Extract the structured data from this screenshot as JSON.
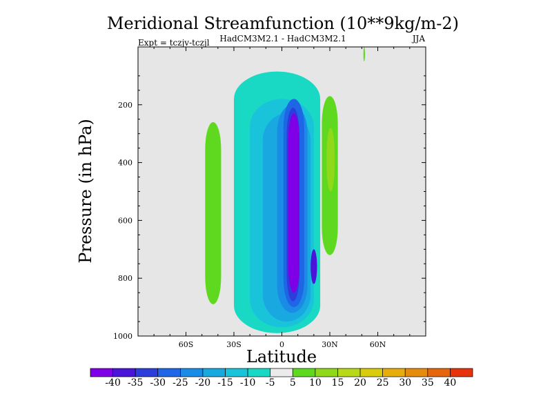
{
  "chart_data": {
    "type": "heatmap",
    "title": "Meridional Streamfunction (10**9kg/m-2)",
    "subtitle_left": "Expt = tczjv-tczjl",
    "subtitle_center": "HadCM3M2.1 - HadCM3M2.1",
    "subtitle_right": "JJA",
    "xlabel": "Latitude",
    "ylabel": "Pressure (in hPa)",
    "xlim": [
      -90,
      90
    ],
    "ylim": [
      0,
      1000
    ],
    "x_ticks": [
      -60,
      -30,
      0,
      30,
      60
    ],
    "x_tick_labels": [
      "60S",
      "30S",
      "0",
      "30N",
      "60N"
    ],
    "y_ticks": [
      200,
      400,
      600,
      800,
      1000
    ],
    "y_tick_labels": [
      "200",
      "400",
      "600",
      "800",
      "1000"
    ],
    "background_color": "#e6e6e6",
    "colorbar": {
      "labels": [
        "-40",
        "-35",
        "-30",
        "-25",
        "-20",
        "-15",
        "-10",
        "-5",
        "5",
        "10",
        "15",
        "20",
        "25",
        "30",
        "35",
        "40"
      ],
      "colors": [
        "#7f00e6",
        "#4a14d9",
        "#2d3ddb",
        "#1f66e6",
        "#1a8ce6",
        "#19a8e0",
        "#19c4db",
        "#19d9c4",
        "#ebebeb",
        "#5fd91f",
        "#8fd91a",
        "#b8d91a",
        "#d9cc0d",
        "#e6ad0d",
        "#e68c0d",
        "#e6660d",
        "#e6330d"
      ]
    },
    "regions": [
      {
        "name": "positive-cell-60s",
        "level": "5",
        "lat": [
          -48,
          -38
        ],
        "pressure": [
          260,
          890
        ]
      },
      {
        "name": "negative-outer-envelope",
        "level": "-5",
        "lat": [
          -30,
          24
        ],
        "pressure": [
          85,
          990
        ]
      },
      {
        "name": "negative-level-10",
        "level": "-10",
        "lat": [
          -20,
          20
        ],
        "pressure": [
          180,
          970
        ]
      },
      {
        "name": "negative-level-15",
        "level": "-15",
        "lat": [
          -12,
          18
        ],
        "pressure": [
          230,
          950
        ]
      },
      {
        "name": "negative-level-20",
        "level": "-20",
        "lat": [
          -3,
          16
        ],
        "pressure": [
          200,
          920
        ]
      },
      {
        "name": "negative-level-25",
        "level": "-25",
        "lat": [
          1,
          14
        ],
        "pressure": [
          180,
          900
        ]
      },
      {
        "name": "negative-level-30",
        "level": "-30",
        "lat": [
          3,
          11
        ],
        "pressure": [
          210,
          880
        ]
      },
      {
        "name": "negative-core",
        "level": "-40",
        "lat": [
          4,
          11
        ],
        "pressure": [
          230,
          850
        ]
      },
      {
        "name": "negative-secondary-core",
        "level": "-35",
        "lat": [
          18,
          22
        ],
        "pressure": [
          700,
          820
        ]
      },
      {
        "name": "positive-cell-30n",
        "level": "5",
        "lat": [
          25,
          35
        ],
        "pressure": [
          170,
          720
        ]
      },
      {
        "name": "positive-cell-30n-inner",
        "level": "10",
        "lat": [
          28,
          33
        ],
        "pressure": [
          280,
          500
        ]
      },
      {
        "name": "positive-sliver-50n",
        "level": "5",
        "lat": [
          51,
          52
        ],
        "pressure": [
          0,
          50
        ]
      }
    ]
  }
}
